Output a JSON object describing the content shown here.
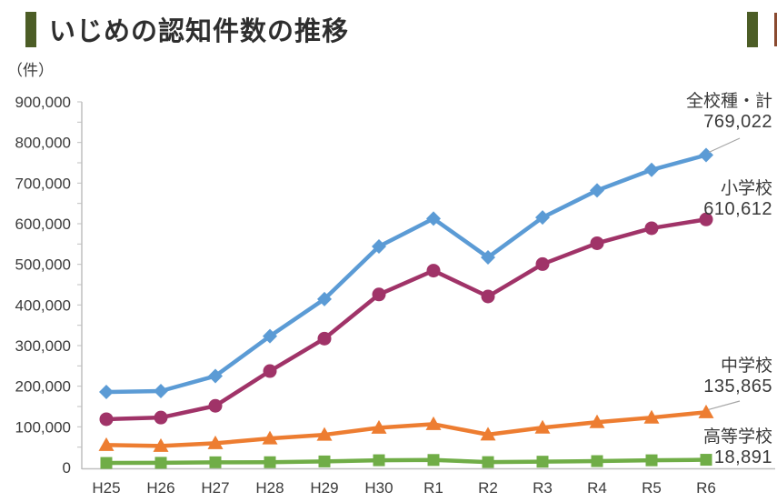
{
  "header": {
    "accent_color": "#4C5D26",
    "next_section_fragment_color": "#8A4A30"
  },
  "chart_data": {
    "type": "line",
    "title": "いじめの認知件数の推移",
    "unit_label": "（件）",
    "x_categories": [
      "H25",
      "H26",
      "H27",
      "H28",
      "H29",
      "H30",
      "R1",
      "R2",
      "R3",
      "R4",
      "R5",
      "R6"
    ],
    "ylim": [
      0,
      900000
    ],
    "y_tick_step": 100000,
    "y_minor_tick_step": 50000,
    "y_tick_labels": [
      "0",
      "100,000",
      "200,000",
      "300,000",
      "400,000",
      "500,000",
      "600,000",
      "700,000",
      "800,000",
      "900,000"
    ],
    "grid": false,
    "legend_position": "end-of-line annotations",
    "axis_color": "#BFBFBF",
    "text_color": "#3b3b3b",
    "leader_line_color": "#A6A6A6",
    "series": [
      {
        "name": "全校種・計",
        "color": "#5B9BD5",
        "marker": "diamond",
        "values": [
          185803,
          188072,
          225132,
          323143,
          414378,
          543933,
          612496,
          517163,
          615351,
          681948,
          732568,
          769022
        ],
        "end_label": "769,022"
      },
      {
        "name": "小学校",
        "color": "#A03368",
        "marker": "circle",
        "values": [
          118748,
          122734,
          151692,
          237256,
          317121,
          425844,
          484545,
          420897,
          500562,
          551944,
          588930,
          610612
        ],
        "end_label": "610,612"
      },
      {
        "name": "中学校",
        "color": "#ED7D31",
        "marker": "triangle",
        "values": [
          55248,
          52971,
          59502,
          71309,
          80424,
          97704,
          106524,
          80877,
          97937,
          111404,
          122703,
          135865
        ],
        "end_label": "135,865"
      },
      {
        "name": "高等学校",
        "color": "#70AD47",
        "marker": "square",
        "values": [
          11039,
          11404,
          12664,
          12874,
          14789,
          17709,
          18352,
          13126,
          14157,
          15568,
          17611,
          18891
        ],
        "end_label": "18,891"
      }
    ]
  }
}
